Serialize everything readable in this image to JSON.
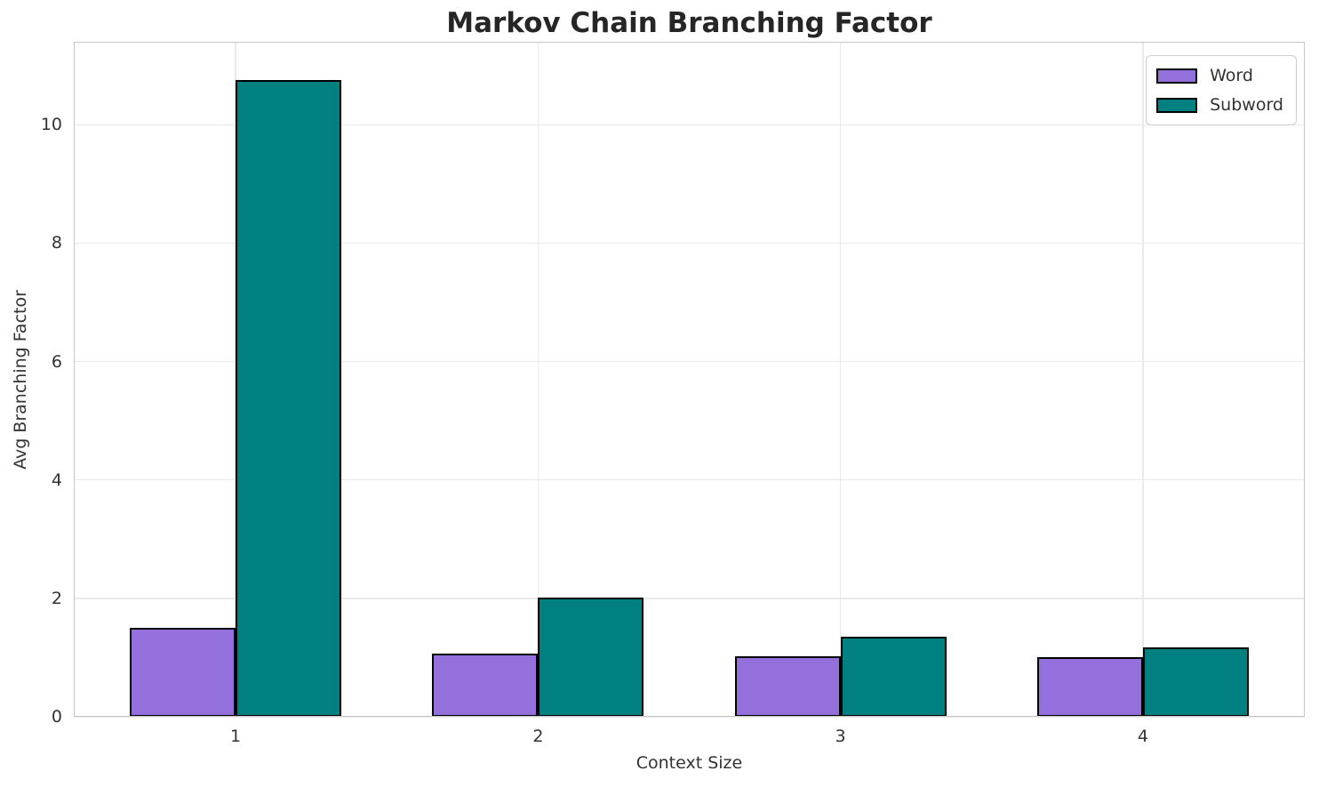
{
  "chart_data": {
    "type": "bar",
    "title": "Markov Chain Branching Factor",
    "xlabel": "Context Size",
    "ylabel": "Avg Branching Factor",
    "categories": [
      "1",
      "2",
      "3",
      "4"
    ],
    "series": [
      {
        "name": "Word",
        "color": "#9370DB",
        "values": [
          1.51,
          1.07,
          1.02,
          1.0
        ]
      },
      {
        "name": "Subword",
        "color": "#008080",
        "values": [
          10.76,
          2.02,
          1.36,
          1.17
        ]
      }
    ],
    "bar_edge_color": "#000000",
    "bar_width_data_units": 0.35,
    "x_positions": [
      1,
      2,
      3,
      4
    ],
    "xlim": [
      0.465,
      4.535
    ],
    "ylim": [
      0,
      11.4
    ],
    "yticks": [
      0,
      2,
      4,
      6,
      8,
      10
    ],
    "ytick_labels": [
      "0",
      "2",
      "4",
      "6",
      "8",
      "10"
    ],
    "grid": true,
    "grid_color": "#e9e9e9",
    "spine_color": "#c6c6c6",
    "background_color": "#ffffff",
    "legend_position": "upper right",
    "legend_entries": [
      "Word",
      "Subword"
    ]
  }
}
